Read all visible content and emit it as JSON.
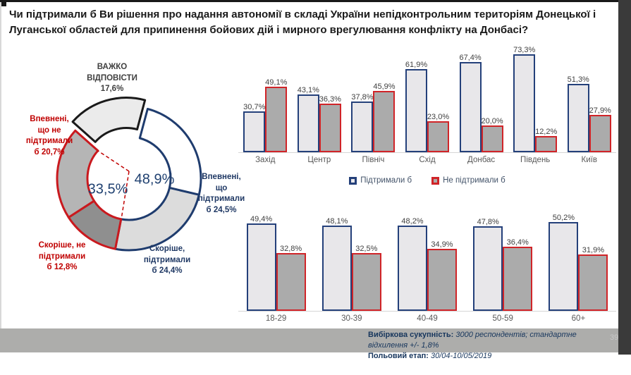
{
  "title": "Чи підтримали б Ви рішення про надання автономії в складі України непідконтрольним територіям Донецької і Луганської областей для припинення бойових дій і мирного врегулювання конфлікту на Донбасі?",
  "legend": {
    "support": "Підтримали б",
    "oppose": "Не підтримали б"
  },
  "footer": {
    "sample_label": "Вибіркова сукупність:",
    "sample_value": "3000 респондентів; стандартне відхилення +/- 1,8%",
    "field_label": "Польовий етап:",
    "field_value": "30/04-10/05/2019"
  },
  "page_number": "39",
  "colors": {
    "navy": "#1f3c6e",
    "red": "#c9191e",
    "black_outline": "#1a1a1a",
    "bar_support_fill": "#e8e7ea",
    "bar_oppose_fill": "#ababab",
    "bar_support_border": "#24407a",
    "bar_oppose_border": "#d02428",
    "footer_bg": "#adadab",
    "frame_dark": "#3a3a3a"
  },
  "chart_data": [
    {
      "type": "pie",
      "subtype": "donut",
      "units": "%",
      "start_angle_deg": 15,
      "center": {
        "support": "48,9%",
        "oppose": "33,5%"
      },
      "segments": [
        {
          "id": "sure-support",
          "label": "Впевнені, що підтримали б",
          "label_lines": [
            "Впевнені,",
            "що",
            "підтримали",
            "б 24,5%"
          ],
          "value": 24.5,
          "group": "support",
          "fill": "#ffffff",
          "stroke": "navy"
        },
        {
          "id": "rather-support",
          "label": "Скоріше, підтримали б",
          "label_lines": [
            "Скоріше,",
            "підтримали",
            "б 24,4%"
          ],
          "value": 24.4,
          "group": "support",
          "fill": "#dcdcdc",
          "stroke": "navy"
        },
        {
          "id": "rather-oppose",
          "label": "Скоріше, не підтримали б",
          "label_lines": [
            "Скоріше, не",
            "підтримали",
            "б 12,8%"
          ],
          "value": 12.8,
          "group": "oppose",
          "fill": "#8f8f8f",
          "stroke": "red"
        },
        {
          "id": "sure-oppose",
          "label": "Впевнені, що не підтримали б",
          "label_lines": [
            "Впевнені,",
            "що не",
            "підтримали",
            "б  20,7%"
          ],
          "value": 20.7,
          "group": "oppose",
          "fill": "#b5b5b5",
          "stroke": "red"
        },
        {
          "id": "hard-to-say",
          "label": "Важко відповісти",
          "label_lines": [
            "ВАЖКО",
            "ВІДПОВІСТИ",
            "17,6%"
          ],
          "value": 17.6,
          "group": "neutral",
          "fill": "#ebebeb",
          "stroke": "black",
          "exploded": true
        }
      ],
      "group_totals": {
        "support": 48.9,
        "oppose": 33.5
      }
    },
    {
      "type": "bar",
      "title": "",
      "categories": [
        "Захід",
        "Центр",
        "Північ",
        "Схід",
        "Донбас",
        "Південь",
        "Київ"
      ],
      "series": [
        {
          "name": "Підтримали б",
          "values": [
            30.7,
            43.1,
            37.8,
            61.9,
            67.4,
            73.3,
            51.3
          ]
        },
        {
          "name": "Не підтримали б",
          "values": [
            49.1,
            36.3,
            45.9,
            23.0,
            20.0,
            12.2,
            27.9
          ]
        }
      ],
      "ylim": [
        0,
        80
      ],
      "value_labels": true,
      "grid": false,
      "legend_position": "bottom"
    },
    {
      "type": "bar",
      "title": "",
      "categories": [
        "18-29",
        "30-39",
        "40-49",
        "50-59",
        "60+"
      ],
      "series": [
        {
          "name": "Підтримали б",
          "values": [
            49.4,
            48.1,
            48.2,
            47.8,
            50.2
          ]
        },
        {
          "name": "Не підтримали б",
          "values": [
            32.8,
            32.5,
            34.9,
            36.4,
            31.9
          ]
        }
      ],
      "ylim": [
        0,
        60
      ],
      "value_labels": true,
      "grid": false
    }
  ]
}
